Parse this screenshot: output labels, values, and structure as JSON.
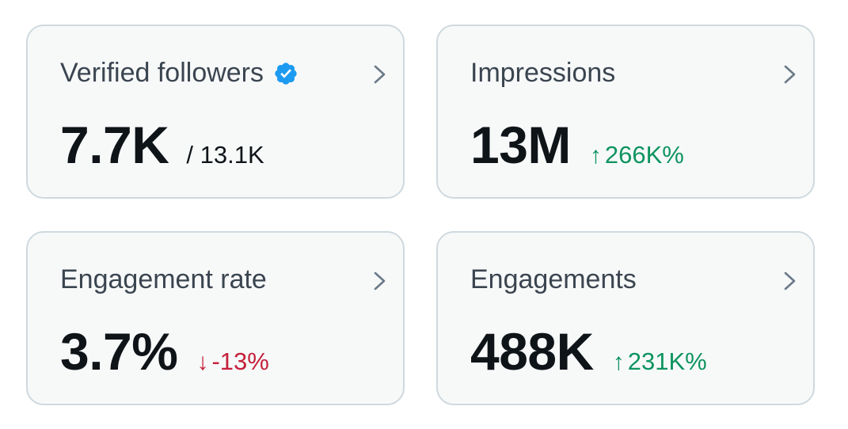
{
  "colors": {
    "card_bg": "#f7f9f9",
    "card_border": "#cfd9de",
    "title": "#3b4550",
    "value": "#0f1419",
    "positive": "#0e9460",
    "negative": "#c4203a",
    "verified": "#1d9bf0"
  },
  "cards": [
    {
      "title": "Verified followers",
      "value": "7.7K",
      "secondary": "/ 13.1K",
      "icon": "verified-badge-icon"
    },
    {
      "title": "Impressions",
      "value": "13M",
      "change": {
        "direction": "up",
        "arrow": "↑",
        "text": "266K%"
      }
    },
    {
      "title": "Engagement rate",
      "value": "3.7%",
      "change": {
        "direction": "down",
        "arrow": "↓",
        "text": "-13%"
      }
    },
    {
      "title": "Engagements",
      "value": "488K",
      "change": {
        "direction": "up",
        "arrow": "↑",
        "text": "231K%"
      }
    }
  ]
}
